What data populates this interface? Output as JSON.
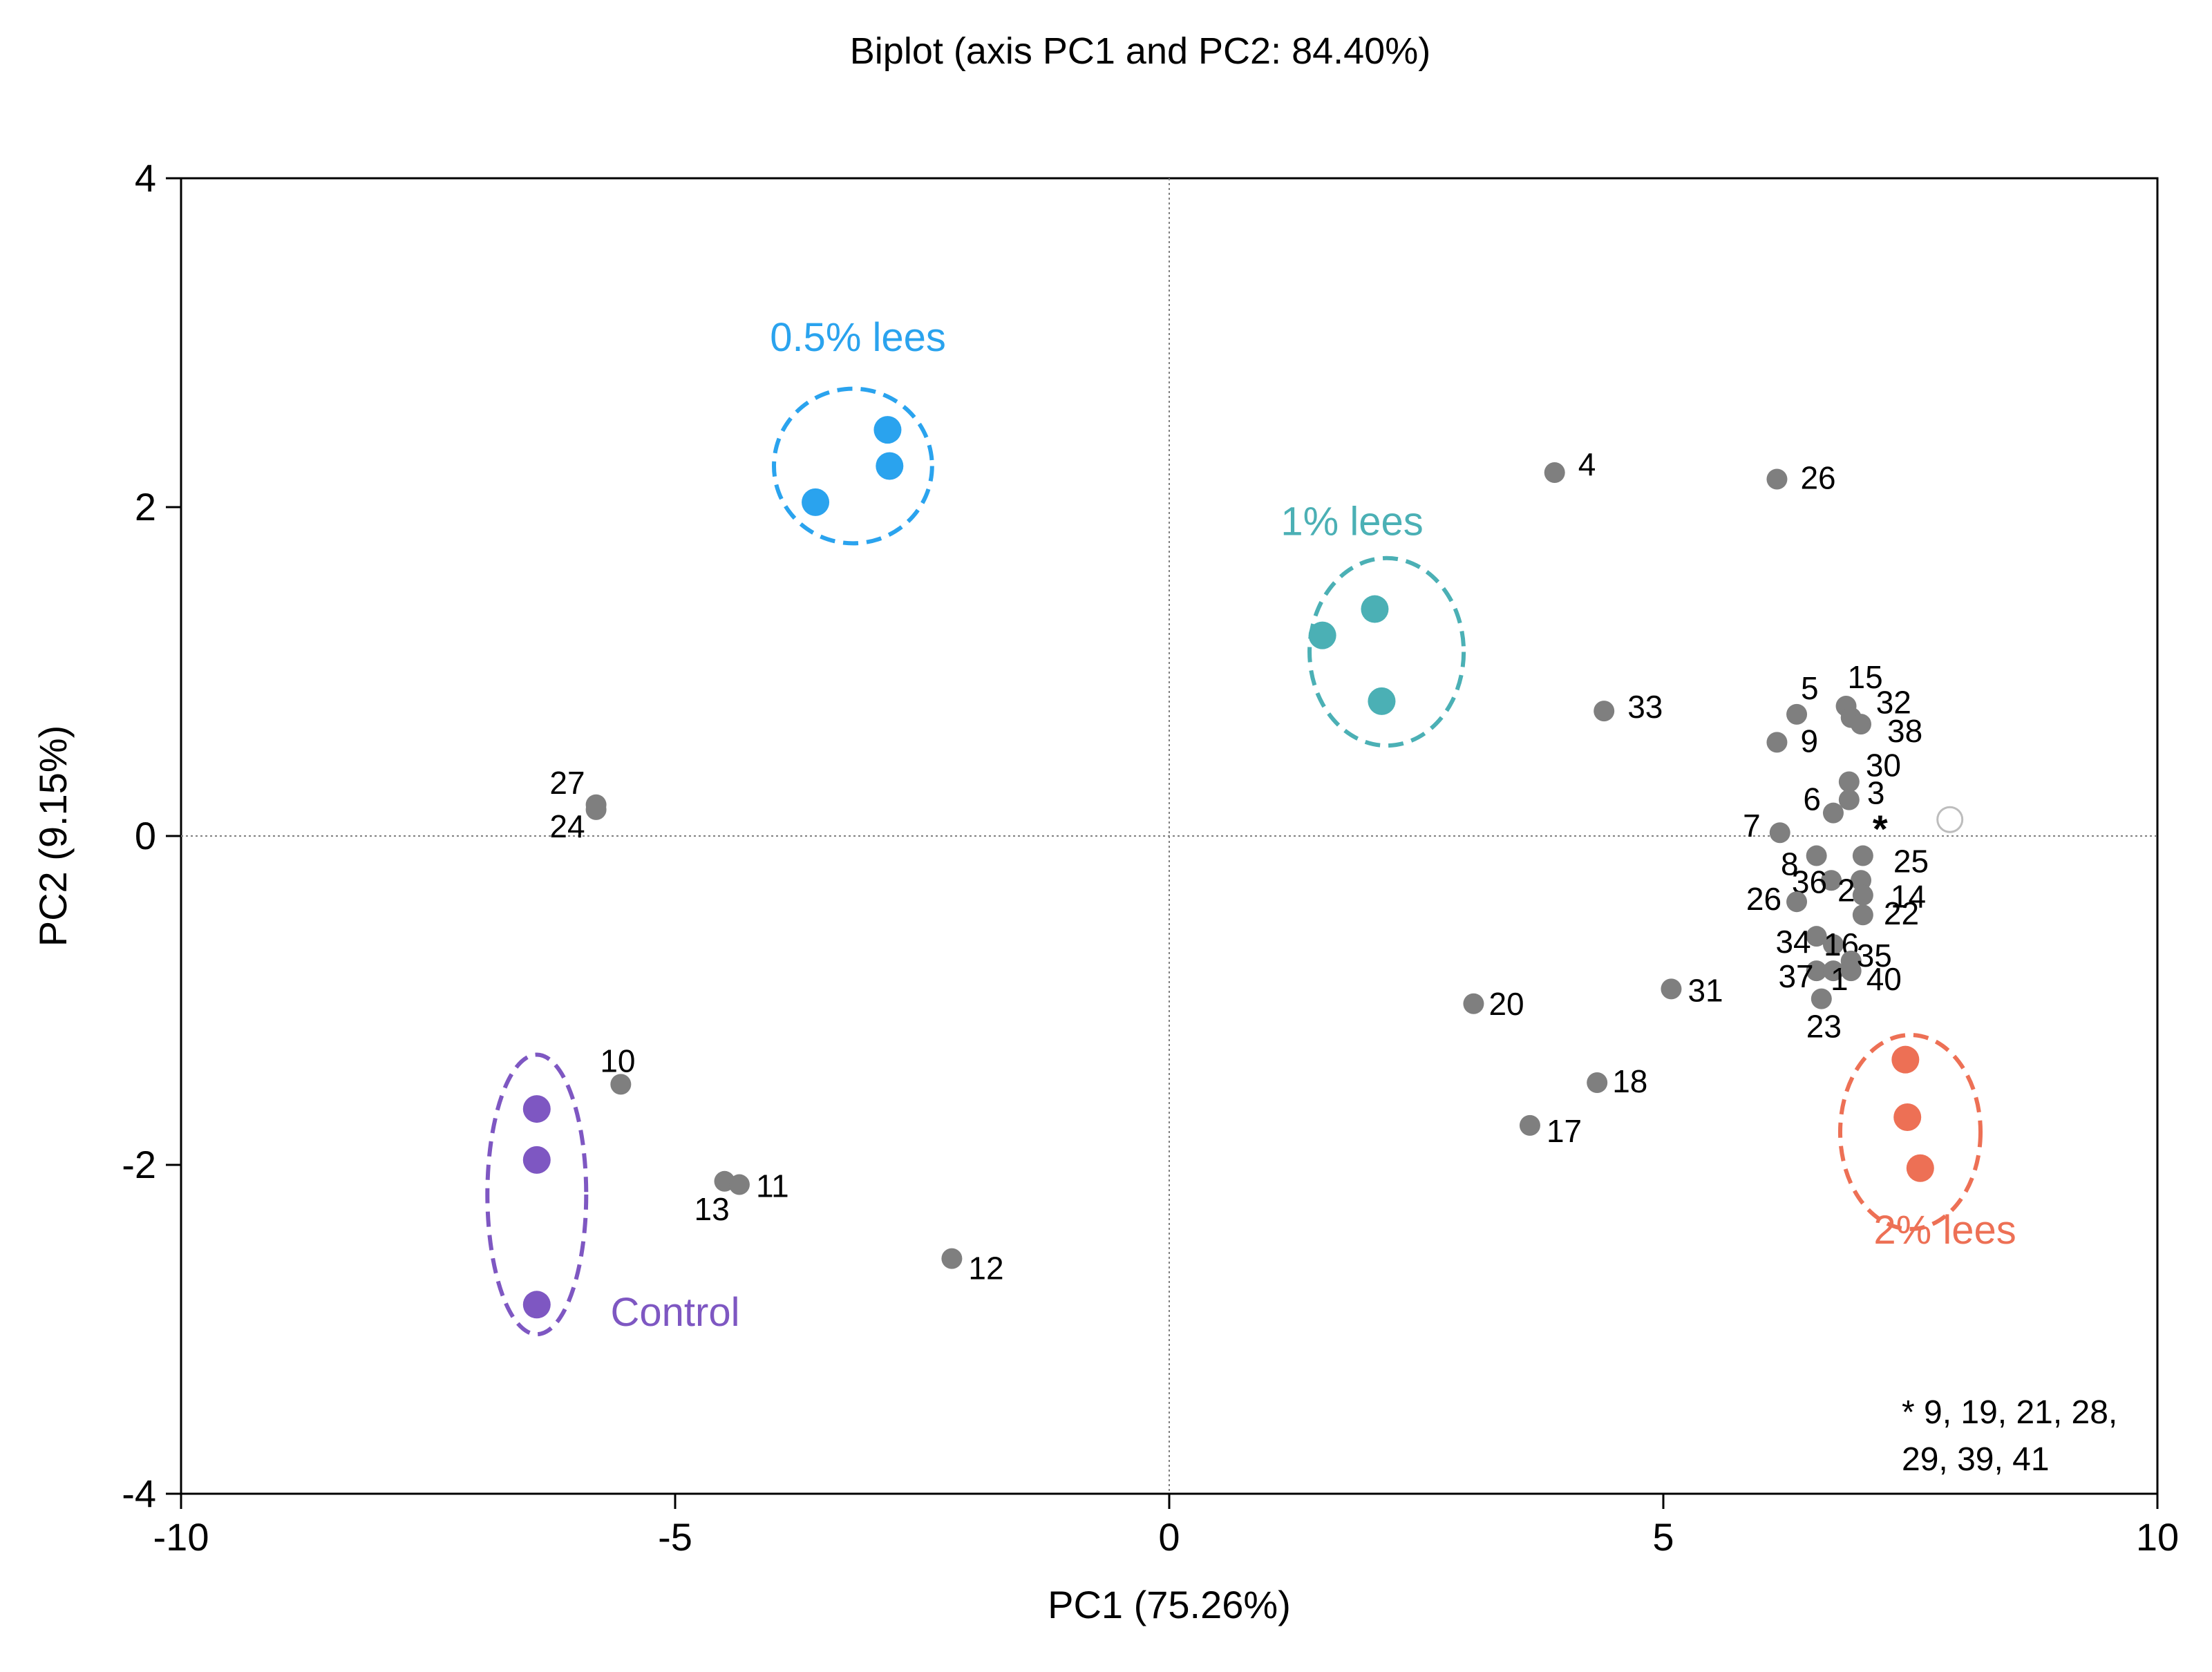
{
  "colors": {
    "axis": "#000000",
    "zero_line": "#7f7f7f",
    "variable": "#7f7f7f",
    "control": "#7e57c2",
    "lees_05": "#2aa3ee",
    "lees_1": "#4bb0b5",
    "lees_2": "#ed7055"
  },
  "chart_data": {
    "type": "scatter",
    "title": "Biplot (axis PC1 and PC2: 84.40%)",
    "xlabel": "PC1 (75.26%)",
    "ylabel": "PC2 (9.15%)",
    "xlim": [
      -10,
      10
    ],
    "ylim": [
      -4,
      4
    ],
    "xticks": [
      -10,
      -5,
      0,
      5,
      10
    ],
    "yticks": [
      -4,
      -2,
      0,
      2,
      4
    ],
    "grid": false,
    "zero_lines": true,
    "groups": [
      {
        "name": "Control",
        "color_key": "control",
        "points": [
          [
            -6.4,
            -1.66
          ],
          [
            -6.4,
            -1.97
          ],
          [
            -6.4,
            -2.85
          ]
        ],
        "ellipse": {
          "cx": -6.4,
          "cy": -2.18,
          "rx": 0.5,
          "ry": 0.85
        },
        "label_pos": [
          -5.0,
          -2.98
        ]
      },
      {
        "name": "0.5% lees",
        "color_key": "lees_05",
        "points": [
          [
            -2.85,
            2.47
          ],
          [
            -2.83,
            2.25
          ],
          [
            -3.58,
            2.03
          ]
        ],
        "ellipse": {
          "cx": -3.2,
          "cy": 2.25,
          "rx": 0.8,
          "ry": 0.47
        },
        "label_pos": [
          -3.15,
          2.95
        ]
      },
      {
        "name": "1% lees",
        "color_key": "lees_1",
        "points": [
          [
            1.55,
            1.22
          ],
          [
            2.08,
            1.38
          ],
          [
            2.15,
            0.82
          ]
        ],
        "ellipse": {
          "cx": 2.2,
          "cy": 1.12,
          "rx": 0.78,
          "ry": 0.57
        },
        "label_pos": [
          1.85,
          1.83
        ]
      },
      {
        "name": "2% lees",
        "color_key": "lees_2",
        "points": [
          [
            7.45,
            -1.36
          ],
          [
            7.47,
            -1.71
          ],
          [
            7.6,
            -2.02
          ]
        ],
        "ellipse": {
          "cx": 7.5,
          "cy": -1.8,
          "rx": 0.71,
          "ry": 0.59
        },
        "label_pos": [
          7.85,
          -2.48
        ]
      }
    ],
    "variables": [
      {
        "label": "4",
        "x": 3.9,
        "y": 2.21
      },
      {
        "label": "26",
        "x": 6.15,
        "y": 2.17
      },
      {
        "label": "33",
        "x": 4.4,
        "y": 0.76
      },
      {
        "label": "5",
        "x": 6.35,
        "y": 0.74
      },
      {
        "label": "15",
        "x": 6.85,
        "y": 0.79
      },
      {
        "label": "32",
        "x": 6.9,
        "y": 0.72
      },
      {
        "label": "9",
        "x": 6.15,
        "y": 0.57
      },
      {
        "label": "38",
        "x": 7.0,
        "y": 0.68
      },
      {
        "label": "30",
        "x": 6.88,
        "y": 0.33
      },
      {
        "label": "3",
        "x": 6.88,
        "y": 0.22
      },
      {
        "label": "6",
        "x": 6.72,
        "y": 0.14
      },
      {
        "label": "7",
        "x": 6.18,
        "y": 0.02
      },
      {
        "label": "*",
        "x": 6.95,
        "y": 0.02
      },
      {
        "label": "8",
        "x": 6.55,
        "y": -0.12
      },
      {
        "label": "25",
        "x": 7.02,
        "y": -0.12
      },
      {
        "label": "36",
        "x": 6.7,
        "y": -0.27
      },
      {
        "label": "2",
        "x": 7.0,
        "y": -0.27
      },
      {
        "label": "14",
        "x": 7.02,
        "y": -0.36
      },
      {
        "label": "26",
        "x": 6.35,
        "y": -0.4
      },
      {
        "label": "22",
        "x": 7.02,
        "y": -0.48
      },
      {
        "label": "34",
        "x": 6.55,
        "y": -0.61
      },
      {
        "label": "16",
        "x": 6.72,
        "y": -0.66
      },
      {
        "label": "35",
        "x": 6.9,
        "y": -0.76
      },
      {
        "label": "37",
        "x": 6.55,
        "y": -0.82
      },
      {
        "label": "1",
        "x": 6.72,
        "y": -0.82
      },
      {
        "label": "40",
        "x": 6.9,
        "y": -0.82
      },
      {
        "label": "23",
        "x": 6.6,
        "y": -0.99
      },
      {
        "label": "20",
        "x": 3.08,
        "y": -1.02
      },
      {
        "label": "31",
        "x": 5.08,
        "y": -0.93
      },
      {
        "label": "18",
        "x": 4.33,
        "y": -1.5
      },
      {
        "label": "17",
        "x": 3.65,
        "y": -1.76
      },
      {
        "label": "27",
        "x": -5.8,
        "y": 0.19
      },
      {
        "label": "24",
        "x": -5.8,
        "y": 0.16
      },
      {
        "label": "10",
        "x": -5.55,
        "y": -1.51
      },
      {
        "label": "13",
        "x": -4.5,
        "y": -2.1
      },
      {
        "label": "11",
        "x": -4.35,
        "y": -2.12
      },
      {
        "label": "12",
        "x": -2.2,
        "y": -2.57
      }
    ],
    "supplementary_points": [
      {
        "x": 7.9,
        "y": 0.1
      }
    ],
    "annotation": {
      "lines": [
        "* 9, 19, 21, 28,",
        "29, 39, 41"
      ],
      "position": "bottom-right"
    }
  }
}
